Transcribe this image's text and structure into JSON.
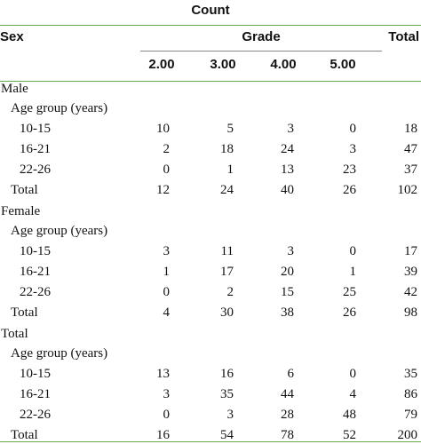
{
  "header": {
    "title": "Count",
    "sex": "Sex",
    "grade": "Grade",
    "total": "Total",
    "grades": [
      "2.00",
      "3.00",
      "4.00",
      "5.00"
    ]
  },
  "sections": [
    {
      "label": "Male",
      "subheader": "Age group (years)",
      "rows": [
        {
          "label": "10-15",
          "values": [
            10,
            5,
            3,
            0,
            18
          ]
        },
        {
          "label": "16-21",
          "values": [
            2,
            18,
            24,
            3,
            47
          ]
        },
        {
          "label": "22-26",
          "values": [
            0,
            1,
            13,
            23,
            37
          ]
        }
      ],
      "total": {
        "label": "Total",
        "values": [
          12,
          24,
          40,
          26,
          102
        ]
      }
    },
    {
      "label": "Female",
      "subheader": "Age group (years)",
      "rows": [
        {
          "label": "10-15",
          "values": [
            3,
            11,
            3,
            0,
            17
          ]
        },
        {
          "label": "16-21",
          "values": [
            1,
            17,
            20,
            1,
            39
          ]
        },
        {
          "label": "22-26",
          "values": [
            0,
            2,
            15,
            25,
            42
          ]
        }
      ],
      "total": {
        "label": "Total",
        "values": [
          4,
          30,
          38,
          26,
          98
        ]
      }
    },
    {
      "label": "Total",
      "subheader": "Age group (years)",
      "rows": [
        {
          "label": "10-15",
          "values": [
            13,
            16,
            6,
            0,
            35
          ]
        },
        {
          "label": "16-21",
          "values": [
            3,
            35,
            44,
            4,
            86
          ]
        },
        {
          "label": "22-26",
          "values": [
            0,
            3,
            28,
            48,
            79
          ]
        }
      ],
      "total": {
        "label": "Total",
        "values": [
          16,
          54,
          78,
          52,
          200
        ]
      }
    }
  ]
}
